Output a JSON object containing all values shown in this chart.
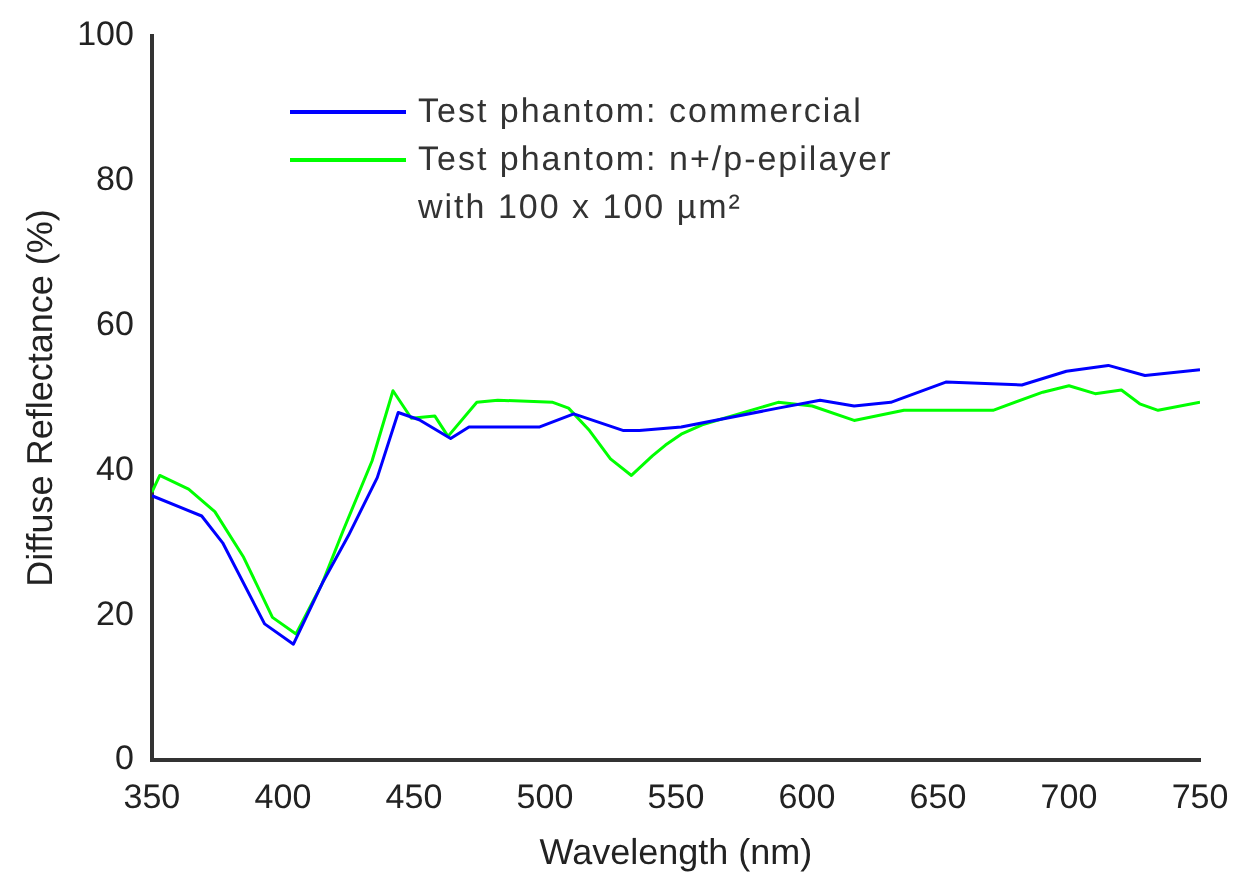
{
  "chart_data": {
    "type": "line",
    "xlabel": "Wavelength (nm)",
    "ylabel": "Diffuse Reflectance (%)",
    "xlim": [
      350,
      750
    ],
    "xticks": [
      350,
      400,
      450,
      500,
      550,
      600,
      650,
      700,
      750
    ],
    "ylim": [
      0,
      100
    ],
    "yticks": [
      0,
      20,
      40,
      60,
      80,
      100
    ],
    "grid": false,
    "legend": "top left",
    "marker": "none",
    "line_style": "solid",
    "series": [
      {
        "name": "Test phantom: commercial",
        "color": "#0000ff",
        "x": [
          350,
          369,
          377,
          393,
          404,
          415,
          425,
          436,
          444,
          452,
          464,
          471,
          498,
          511,
          530,
          536,
          552,
          589,
          605,
          618,
          632,
          653,
          682,
          699,
          715,
          729,
          750
        ],
        "values": [
          36.5,
          33.7,
          30,
          18.8,
          16,
          24.4,
          31,
          39,
          48,
          47,
          44.4,
          46,
          46,
          47.8,
          45.5,
          45.5,
          46,
          48.6,
          49.7,
          48.9,
          49.4,
          52.2,
          51.8,
          53.7,
          54.5,
          53.1,
          53.9
        ]
      },
      {
        "name": "Test phantom: n+/p-epilayer with 100 x 100 µm²",
        "color": "#00ff00",
        "x": [
          350,
          353,
          364,
          374,
          385,
          396,
          405,
          415,
          423,
          434,
          442,
          449,
          458,
          463,
          474,
          482,
          503,
          509,
          517,
          525,
          533,
          541,
          546,
          552,
          560,
          589,
          602,
          618,
          637,
          671,
          690,
          700,
          710,
          720,
          727,
          734,
          750
        ],
        "values": [
          37,
          39.3,
          37.4,
          34.3,
          28,
          19.7,
          17.4,
          24.4,
          31.7,
          41.3,
          51,
          47.2,
          47.5,
          44.7,
          49.4,
          49.7,
          49.4,
          48.6,
          45.5,
          41.6,
          39.3,
          42,
          43.5,
          45,
          46.3,
          49.4,
          48.9,
          46.9,
          48.3,
          48.3,
          50.8,
          51.7,
          50.6,
          51.1,
          49.2,
          48.3,
          49.4
        ]
      }
    ]
  }
}
